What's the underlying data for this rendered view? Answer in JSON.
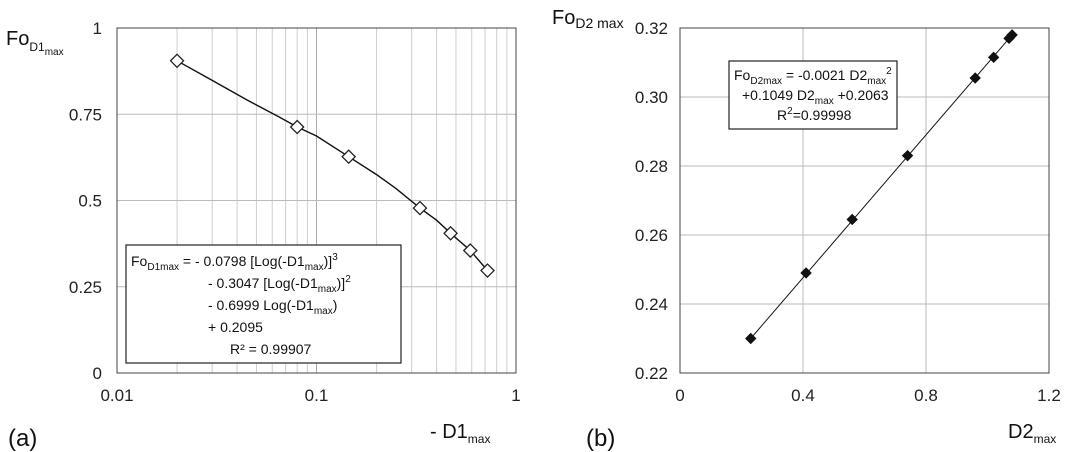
{
  "chart_data": [
    {
      "type": "line",
      "panel_label": "(a)",
      "xscale": "log",
      "xlim": [
        0.01,
        1
      ],
      "ylim": [
        0,
        1
      ],
      "x_ticks": [
        "0.01",
        "0.1",
        "1"
      ],
      "y_ticks": [
        "0",
        "0.25",
        "0.5",
        "0.75",
        "1"
      ],
      "ylabel": {
        "base": "Fo",
        "sub": "D1",
        "subsub": "max"
      },
      "xlabel": {
        "base": "- D1",
        "sub": "max"
      },
      "marker": "hollow-diamond",
      "x": [
        0.02,
        0.08,
        0.145,
        0.33,
        0.47,
        0.59,
        0.72
      ],
      "y": [
        0.905,
        0.713,
        0.627,
        0.478,
        0.405,
        0.355,
        0.297
      ],
      "fit": [
        [
          0.02,
          0.905
        ],
        [
          0.03,
          0.848
        ],
        [
          0.045,
          0.791
        ],
        [
          0.065,
          0.742
        ],
        [
          0.08,
          0.713
        ],
        [
          0.1,
          0.687
        ],
        [
          0.145,
          0.627
        ],
        [
          0.2,
          0.575
        ],
        [
          0.25,
          0.535
        ],
        [
          0.33,
          0.478
        ],
        [
          0.4,
          0.443
        ],
        [
          0.47,
          0.405
        ],
        [
          0.59,
          0.355
        ],
        [
          0.72,
          0.297
        ]
      ],
      "equation_lines": [
        [
          {
            "t": "Fo"
          },
          {
            "t": "D1max",
            "s": "sub"
          },
          {
            "t": " = - 0.0798 [Log(-D1"
          },
          {
            "t": "max",
            "s": "sub"
          },
          {
            "t": ")]"
          },
          {
            "t": "3",
            "s": "sup"
          }
        ],
        [
          {
            "t": "- 0.3047 [Log(-D1"
          },
          {
            "t": "max",
            "s": "sub"
          },
          {
            "t": ")]"
          },
          {
            "t": "2",
            "s": "sup"
          }
        ],
        [
          {
            "t": "- 0.6999 Log(-D1"
          },
          {
            "t": "max",
            "s": "sub"
          },
          {
            "t": ")"
          }
        ],
        [
          {
            "t": "+ 0.2095"
          }
        ],
        [
          {
            "t": "R² = 0.99907"
          }
        ]
      ]
    },
    {
      "type": "line",
      "panel_label": "(b)",
      "xlim": [
        0,
        1.2
      ],
      "ylim": [
        0.22,
        0.32
      ],
      "x_ticks": [
        "0",
        "0.4",
        "0.8",
        "1.2"
      ],
      "y_ticks": [
        "0.22",
        "0.24",
        "0.26",
        "0.28",
        "0.30",
        "0.32"
      ],
      "ylabel": {
        "base": "Fo",
        "sub": "D2 max"
      },
      "xlabel": {
        "base": "D2",
        "sub": "max"
      },
      "marker": "filled-diamond",
      "x": [
        0.23,
        0.41,
        0.56,
        0.74,
        0.96,
        1.02,
        1.07,
        1.08
      ],
      "y": [
        0.23,
        0.249,
        0.2645,
        0.283,
        0.3055,
        0.3115,
        0.317,
        0.318
      ],
      "fit": [
        [
          0.23,
          0.23
        ],
        [
          1.08,
          0.318
        ]
      ],
      "equation_lines": [
        [
          {
            "t": "Fo"
          },
          {
            "t": "D2max",
            "s": "sub"
          },
          {
            "t": " = -0.0021 D2"
          },
          {
            "t": "max",
            "s": "sub"
          },
          {
            "t": "2",
            "s": "sup"
          }
        ],
        [
          {
            "t": "+0.1049 D2"
          },
          {
            "t": "max",
            "s": "sub"
          },
          {
            "t": " +0.2063"
          }
        ],
        [
          {
            "t": "R"
          },
          {
            "t": "2",
            "s": "sup"
          },
          {
            "t": "=0.99998"
          }
        ]
      ]
    }
  ]
}
